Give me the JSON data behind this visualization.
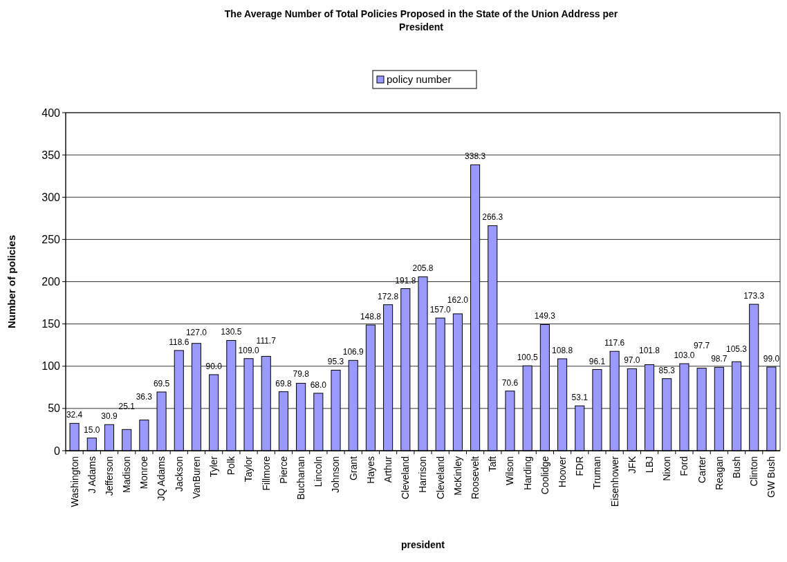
{
  "chart_data": {
    "type": "bar",
    "title": "The Average Number of Total Policies Proposed in the State of the Union Address per President",
    "xlabel": "president",
    "ylabel": "Number of policies",
    "categories": [
      "Washington",
      "J Adams",
      "Jefferson",
      "Madison",
      "Monroe",
      "JQ Adams",
      "Jackson",
      "VanBuren",
      "Tyler",
      "Polk",
      "Taylor",
      "Fillmore",
      "Pierce",
      "Buchanan",
      "Lincoln",
      "Johnson",
      "Grant",
      "Hayes",
      "Arthur",
      "Cleveland",
      "Harrison",
      "Cleveland",
      "McKinley",
      "Roosevelt",
      "Taft",
      "Wilson",
      "Harding",
      "Coolidge",
      "Hoover",
      "FDR",
      "Truman",
      "Eisenhower",
      "JFK",
      "LBJ",
      "Nixon",
      "Ford",
      "Carter",
      "Reagan",
      "Bush",
      "Clinton",
      "GW Bush"
    ],
    "series": [
      {
        "name": "policy number",
        "color": "#9999ff",
        "values": [
          32.4,
          15.0,
          30.9,
          25.1,
          36.3,
          69.5,
          118.6,
          127.0,
          90.0,
          130.5,
          109.0,
          111.7,
          69.8,
          79.8,
          68.0,
          95.3,
          106.9,
          148.8,
          172.8,
          191.8,
          205.8,
          157.0,
          162.0,
          338.3,
          266.3,
          70.6,
          100.5,
          149.3,
          108.8,
          53.1,
          96.1,
          117.6,
          97.0,
          101.8,
          85.3,
          103.0,
          97.7,
          98.7,
          105.3,
          173.3,
          99.0
        ]
      }
    ],
    "value_labels": [
      "32.4",
      "15.0",
      "30.9",
      "25.1",
      "36.3",
      "69.5",
      "118.6",
      "127.0",
      "90.0",
      "130.5",
      "109.0",
      "111.7",
      "69.8",
      "79.8",
      "68.0",
      "95.3",
      "106.9",
      "148.8",
      "172.8",
      "191.8",
      "205.8",
      "157.0",
      "162.0",
      "338.3",
      "266.3",
      "70.6",
      "100.5",
      "149.3",
      "108.8",
      "53.1",
      "96.1",
      "117.6",
      "97.0",
      "101.8",
      "85.3",
      "103.0",
      "97.7",
      "98.7",
      "105.3",
      "173.3",
      "99.0"
    ],
    "ylim": [
      0,
      400
    ],
    "yticks": [
      0,
      50,
      100,
      150,
      200,
      250,
      300,
      350,
      400
    ],
    "grid": "y",
    "legend": "top"
  }
}
